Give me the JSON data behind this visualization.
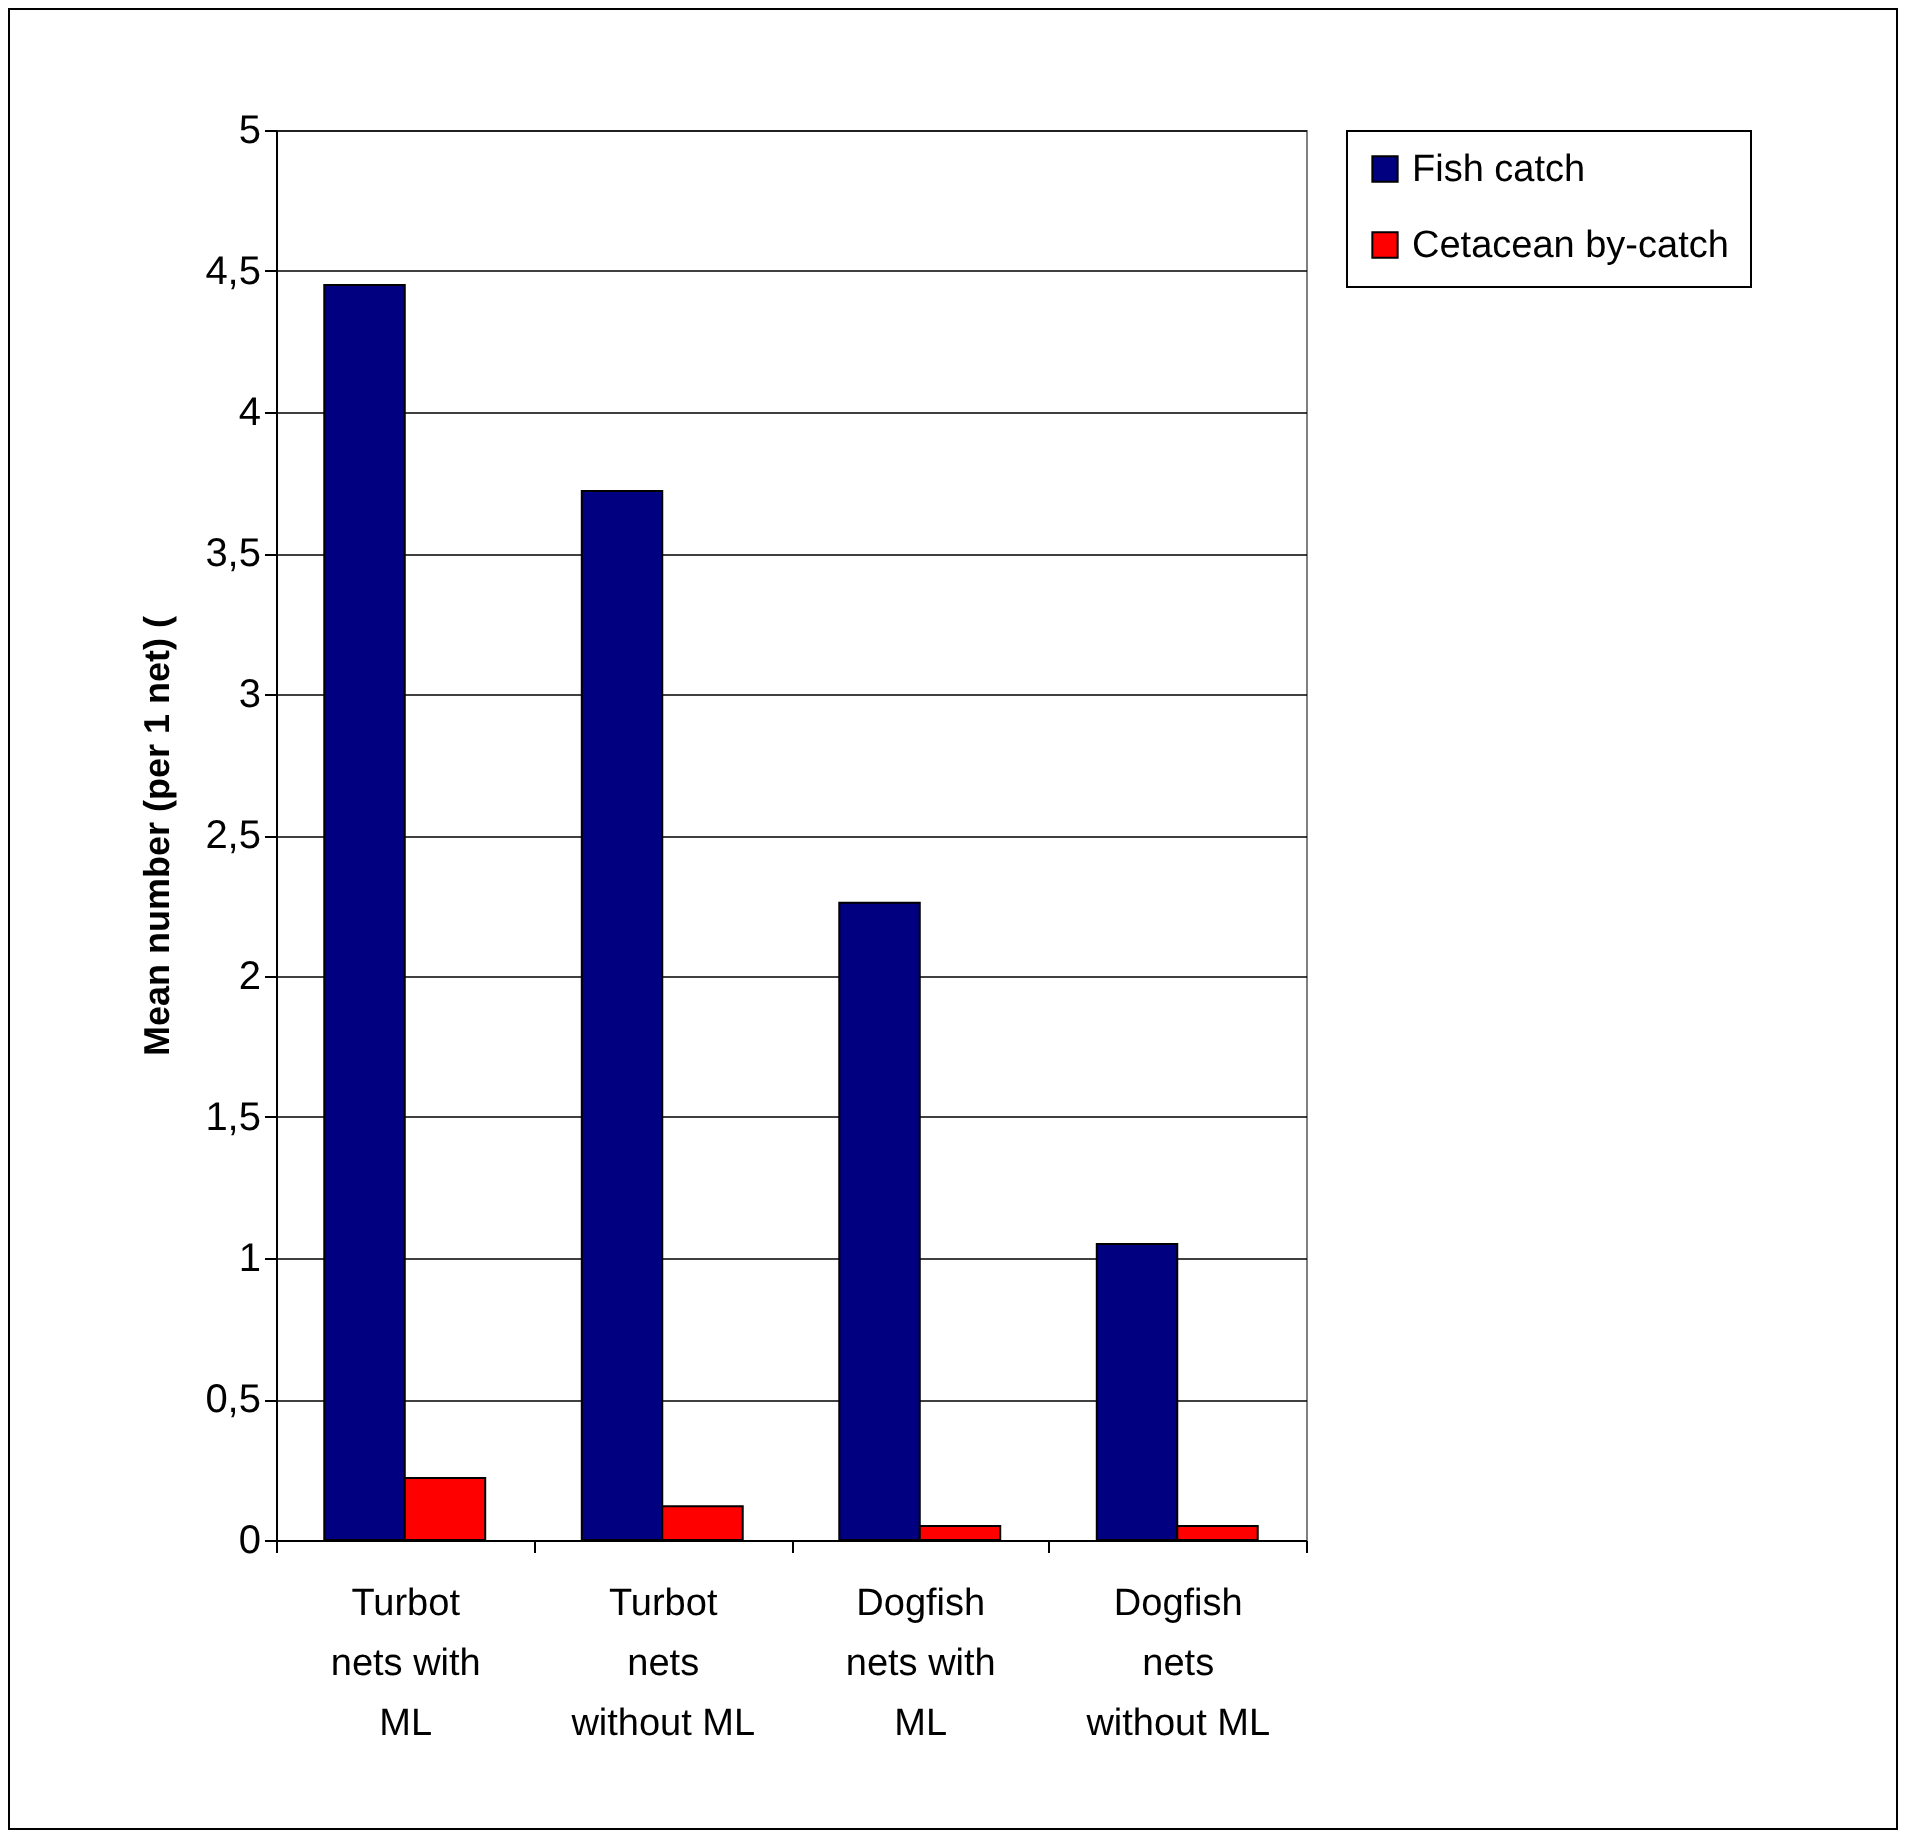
{
  "chart_data": {
    "type": "bar",
    "ylabel": "Mean number (per 1 net) (",
    "categories": [
      "Turbot nets with ML",
      "Turbot nets without ML",
      "Dogfish nets with ML",
      "Dogfish nets without ML"
    ],
    "series": [
      {
        "name": "Fish catch",
        "color": "#000080",
        "values": [
          4.45,
          3.72,
          2.26,
          1.05
        ]
      },
      {
        "name": "Cetacean by-catch",
        "color": "#ff0000",
        "values": [
          0.22,
          0.12,
          0.05,
          0.05
        ]
      }
    ],
    "ylim": [
      0,
      5
    ],
    "yticks": [
      0,
      {
        "value": 0.5,
        "label": "0,5"
      },
      1,
      {
        "value": 1.5,
        "label": "1,5"
      },
      2,
      {
        "value": 2.5,
        "label": "2,5"
      },
      3,
      {
        "value": 3.5,
        "label": "3,5"
      },
      4,
      {
        "value": 4.5,
        "label": "4,5"
      },
      5
    ],
    "grid": "y",
    "legend": "right"
  }
}
